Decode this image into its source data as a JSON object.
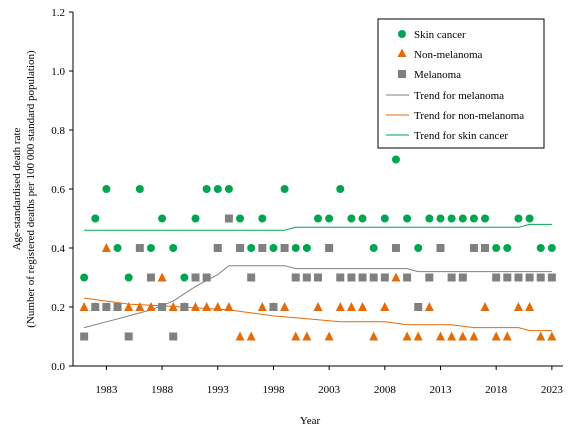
{
  "chart_data": {
    "type": "scatter",
    "title": "",
    "xlabel": "Year",
    "ylabel_line1": "Age-standardised death rate",
    "ylabel_line2": "(Number of registered deaths per 100 000 standard population)",
    "xlim": [
      1980,
      2024
    ],
    "ylim": [
      0,
      1.2
    ],
    "x_ticks": [
      1983,
      1988,
      1993,
      1998,
      2003,
      2008,
      2013,
      2018,
      2023
    ],
    "y_ticks": [
      0.0,
      0.2,
      0.4,
      0.6,
      0.8,
      1.0,
      1.2
    ],
    "y_tick_labels": [
      "0.0",
      "0.2",
      "0.4",
      "0.6",
      "0.8",
      "1.0",
      "1.2"
    ],
    "grid": false,
    "legend_position": "top-right",
    "x": [
      1981,
      1982,
      1983,
      1984,
      1985,
      1986,
      1987,
      1988,
      1989,
      1990,
      1991,
      1992,
      1993,
      1994,
      1995,
      1996,
      1997,
      1998,
      1999,
      2000,
      2001,
      2002,
      2003,
      2004,
      2005,
      2006,
      2007,
      2008,
      2009,
      2010,
      2011,
      2012,
      2013,
      2014,
      2015,
      2016,
      2017,
      2018,
      2019,
      2020,
      2021,
      2022,
      2023
    ],
    "series": [
      {
        "name": "Skin cancer",
        "marker": "circle",
        "color": "#00a550",
        "values": [
          0.3,
          0.5,
          0.6,
          0.4,
          0.3,
          0.6,
          0.4,
          0.5,
          0.4,
          0.3,
          0.5,
          0.6,
          0.6,
          0.6,
          0.5,
          0.4,
          0.5,
          0.4,
          0.6,
          0.4,
          0.4,
          0.5,
          0.5,
          0.6,
          0.5,
          0.5,
          0.4,
          0.5,
          0.7,
          0.5,
          0.4,
          0.5,
          0.5,
          0.5,
          0.5,
          0.5,
          0.5,
          0.4,
          0.4,
          0.5,
          0.5,
          0.4,
          0.4
        ]
      },
      {
        "name": "Non-melanoma",
        "marker": "triangle",
        "color": "#e36c09",
        "values": [
          0.2,
          0.2,
          0.4,
          0.2,
          0.2,
          0.2,
          0.2,
          0.3,
          0.2,
          0.2,
          0.2,
          0.2,
          0.2,
          0.2,
          0.1,
          0.1,
          0.2,
          0.2,
          0.2,
          0.1,
          0.1,
          0.2,
          0.1,
          0.2,
          0.2,
          0.2,
          0.1,
          0.2,
          0.3,
          0.1,
          0.1,
          0.2,
          0.1,
          0.1,
          0.1,
          0.1,
          0.2,
          0.1,
          0.1,
          0.2,
          0.2,
          0.1,
          0.1
        ]
      },
      {
        "name": "Melanoma",
        "marker": "square",
        "color": "#808080",
        "values": [
          0.1,
          0.2,
          0.2,
          0.2,
          0.1,
          0.4,
          0.3,
          0.2,
          0.1,
          0.2,
          0.3,
          0.3,
          0.4,
          0.5,
          0.4,
          0.3,
          0.4,
          0.2,
          0.4,
          0.3,
          0.3,
          0.3,
          0.4,
          0.3,
          0.3,
          0.3,
          0.3,
          0.3,
          0.4,
          0.3,
          0.2,
          0.3,
          0.4,
          0.3,
          0.3,
          0.4,
          0.4,
          0.3,
          0.3,
          0.3,
          0.3,
          0.3,
          0.3
        ]
      },
      {
        "name": "Trend for melanoma",
        "type": "line",
        "color": "#808080",
        "points": [
          [
            1981,
            0.13
          ],
          [
            1983,
            0.15
          ],
          [
            1985,
            0.17
          ],
          [
            1987,
            0.19
          ],
          [
            1989,
            0.22
          ],
          [
            1991,
            0.27
          ],
          [
            1993,
            0.31
          ],
          [
            1994,
            0.34
          ],
          [
            1999,
            0.34
          ],
          [
            2000,
            0.33
          ],
          [
            2010,
            0.33
          ],
          [
            2011,
            0.32
          ],
          [
            2023,
            0.32
          ]
        ]
      },
      {
        "name": "Trend for non-melanoma",
        "type": "line",
        "color": "#e36c09",
        "points": [
          [
            1981,
            0.23
          ],
          [
            1983,
            0.22
          ],
          [
            1985,
            0.21
          ],
          [
            1990,
            0.2
          ],
          [
            1994,
            0.19
          ],
          [
            1998,
            0.17
          ],
          [
            2001,
            0.16
          ],
          [
            2004,
            0.15
          ],
          [
            2008,
            0.15
          ],
          [
            2010,
            0.14
          ],
          [
            2014,
            0.14
          ],
          [
            2016,
            0.13
          ],
          [
            2020,
            0.13
          ],
          [
            2021,
            0.12
          ],
          [
            2023,
            0.12
          ]
        ]
      },
      {
        "name": "Trend for skin cancer",
        "type": "line",
        "color": "#00a550",
        "points": [
          [
            1981,
            0.46
          ],
          [
            1999,
            0.46
          ],
          [
            2000,
            0.47
          ],
          [
            2020,
            0.47
          ],
          [
            2021,
            0.48
          ],
          [
            2023,
            0.48
          ]
        ]
      }
    ]
  }
}
